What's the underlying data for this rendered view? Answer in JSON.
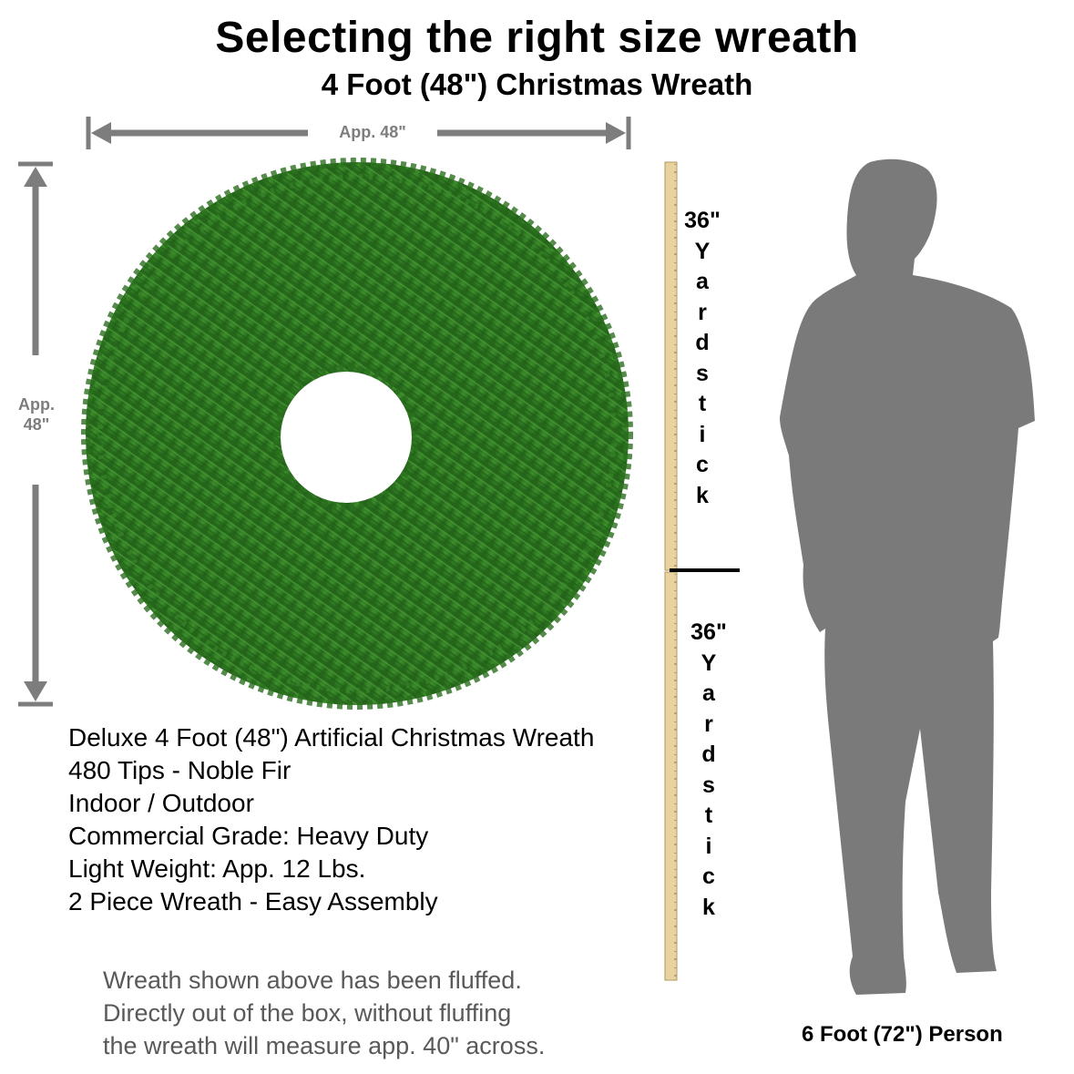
{
  "title": "Selecting the right size wreath",
  "subtitle": "4 Foot (48\") Christmas Wreath",
  "dimensions": {
    "width_label": "App. 48\"",
    "height_label_line1": "App.",
    "height_label_line2": "48\""
  },
  "yardsticks": [
    {
      "measure": "36\"",
      "letters": [
        "Y",
        "a",
        "r",
        "d",
        "s",
        "t",
        "i",
        "c",
        "k"
      ]
    },
    {
      "measure": "36\"",
      "letters": [
        "Y",
        "a",
        "r",
        "d",
        "s",
        "t",
        "i",
        "c",
        "k"
      ]
    }
  ],
  "specs": [
    "Deluxe 4 Foot (48\") Artificial Christmas Wreath",
    "480 Tips - Noble Fir",
    "Indoor / Outdoor",
    "Commercial Grade: Heavy Duty",
    "Light Weight: App. 12 Lbs.",
    "2 Piece Wreath - Easy Assembly"
  ],
  "note": [
    "Wreath shown above has been fluffed.",
    "Directly out of the box, without fluffing",
    "the wreath will measure app. 40\" across."
  ],
  "person_caption": "6 Foot (72\") Person",
  "colors": {
    "wreath_green": "#2f7a22",
    "arrow_gray": "#7d7d7d",
    "yardstick_wood": "#e8d3a0",
    "silhouette_gray": "#7a7a7a"
  }
}
